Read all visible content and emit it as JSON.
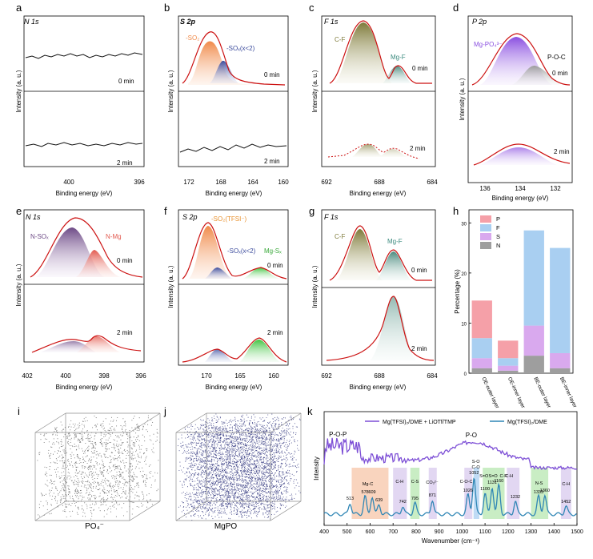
{
  "panels": {
    "a": {
      "letter": "a",
      "title": "N 1s",
      "ylabel": "Intensity (a. u.)",
      "xlabel": "Binding energy (eV)",
      "ticks": [
        "400",
        "396"
      ],
      "top_label": "0 min",
      "bottom_label": "2 min"
    },
    "b": {
      "letter": "b",
      "title": "S 2p",
      "ylabel": "Intensity (a. u.)",
      "xlabel": "Binding energy (eV)",
      "ticks": [
        "172",
        "168",
        "164",
        "160"
      ],
      "peak1": "-SO₂",
      "peak2": "-SOₓ(x<2)",
      "top_label": "0 min",
      "bottom_label": "2 min"
    },
    "c": {
      "letter": "c",
      "title": "F 1s",
      "ylabel": "Intensity (a. u.)",
      "xlabel": "Binding energy (eV)",
      "ticks": [
        "692",
        "688",
        "684"
      ],
      "peak1": "C-F",
      "peak2": "Mg-F",
      "top_label": "0 min",
      "bottom_label": "2 min"
    },
    "d": {
      "letter": "d",
      "title": "P 2p",
      "ylabel": "Intensity (a. u.)",
      "xlabel": "Binding energy (eV)",
      "ticks": [
        "136",
        "134",
        "132"
      ],
      "peak1": "Mg-PO₄³⁻",
      "peak2": "P-O-C",
      "top_label": "0 min",
      "bottom_label": "2 min"
    },
    "e": {
      "letter": "e",
      "title": "N 1s",
      "ylabel": "Intensity (a. u.)",
      "xlabel": "Binding energy (eV)",
      "ticks": [
        "402",
        "400",
        "398",
        "396"
      ],
      "peak1": "N-SOₓ",
      "peak2": "N-Mg",
      "top_label": "0 min",
      "bottom_label": "2 min"
    },
    "f": {
      "letter": "f",
      "title": "S 2p",
      "ylabel": "Intensity (a. u.)",
      "xlabel": "Binding energy (eV)",
      "ticks": [
        "170",
        "165",
        "160"
      ],
      "peak1": "-SO₂(TFSI⁻)",
      "peak2": "-SOₓ(x<2)",
      "peak3": "Mg-Sₓ",
      "top_label": "0 min",
      "bottom_label": "2 min"
    },
    "g": {
      "letter": "g",
      "title": "F 1s",
      "ylabel": "Intensity (a. u.)",
      "xlabel": "Binding energy (eV)",
      "ticks": [
        "692",
        "688",
        "684"
      ],
      "peak1": "C-F",
      "peak2": "Mg-F",
      "top_label": "0 min",
      "bottom_label": "2 min"
    },
    "i": {
      "letter": "i",
      "caption": "PO₄⁻"
    },
    "j": {
      "letter": "j",
      "caption": "MgPO"
    }
  },
  "chart_data": [
    {
      "panel": "h",
      "type": "bar",
      "stacked": true,
      "ylabel": "Percentage (%)",
      "ylim": [
        0,
        30
      ],
      "yticks": [
        "0",
        "10",
        "20",
        "30"
      ],
      "categories": [
        "OE-outer layer",
        "OE-inner layer",
        "BE-outer layer",
        "BE-inner layer"
      ],
      "series": [
        {
          "name": "N",
          "color": "#9e9e9e",
          "values": [
            1.0,
            0.5,
            3.5,
            1.0
          ]
        },
        {
          "name": "S",
          "color": "#d9a9ee",
          "values": [
            2.0,
            1.0,
            6.0,
            3.0
          ]
        },
        {
          "name": "F",
          "color": "#a9cff1",
          "values": [
            4.0,
            1.5,
            19.0,
            21.0
          ]
        },
        {
          "name": "P",
          "color": "#f5a0a8",
          "values": [
            7.5,
            3.5,
            0.0,
            0.0
          ]
        }
      ]
    },
    {
      "panel": "k",
      "type": "line",
      "xlabel": "Wavenumber (cm⁻¹)",
      "ylabel": "Intensity",
      "xlim": [
        400,
        1500
      ],
      "xticks": [
        "400",
        "500",
        "600",
        "700",
        "800",
        "900",
        "1000",
        "1100",
        "1200",
        "1300",
        "1400",
        "1500"
      ],
      "series": [
        {
          "name": "Mg(TFSI)₂/DME + LiOTf/TMP",
          "color": "#7d4fd6"
        },
        {
          "name": "Mg(TFSI)₂/DME",
          "color": "#2f86b5"
        }
      ],
      "group_labels": [
        "P-O-P",
        "P-O"
      ],
      "band_labels": [
        "Mg-C",
        "C-H",
        "C-S",
        "CO₃²⁻",
        "C-O-C",
        "S-O",
        "C-O",
        "S=O",
        "S=O",
        "C-F",
        "C-H",
        "N-S",
        "C-H"
      ],
      "peak_values": [
        "513",
        "578",
        "609",
        "639",
        "742",
        "795",
        "871",
        "1026",
        "1052",
        "1100",
        "1131",
        "1160",
        "1232",
        "1333",
        "1360",
        "1452"
      ]
    }
  ]
}
